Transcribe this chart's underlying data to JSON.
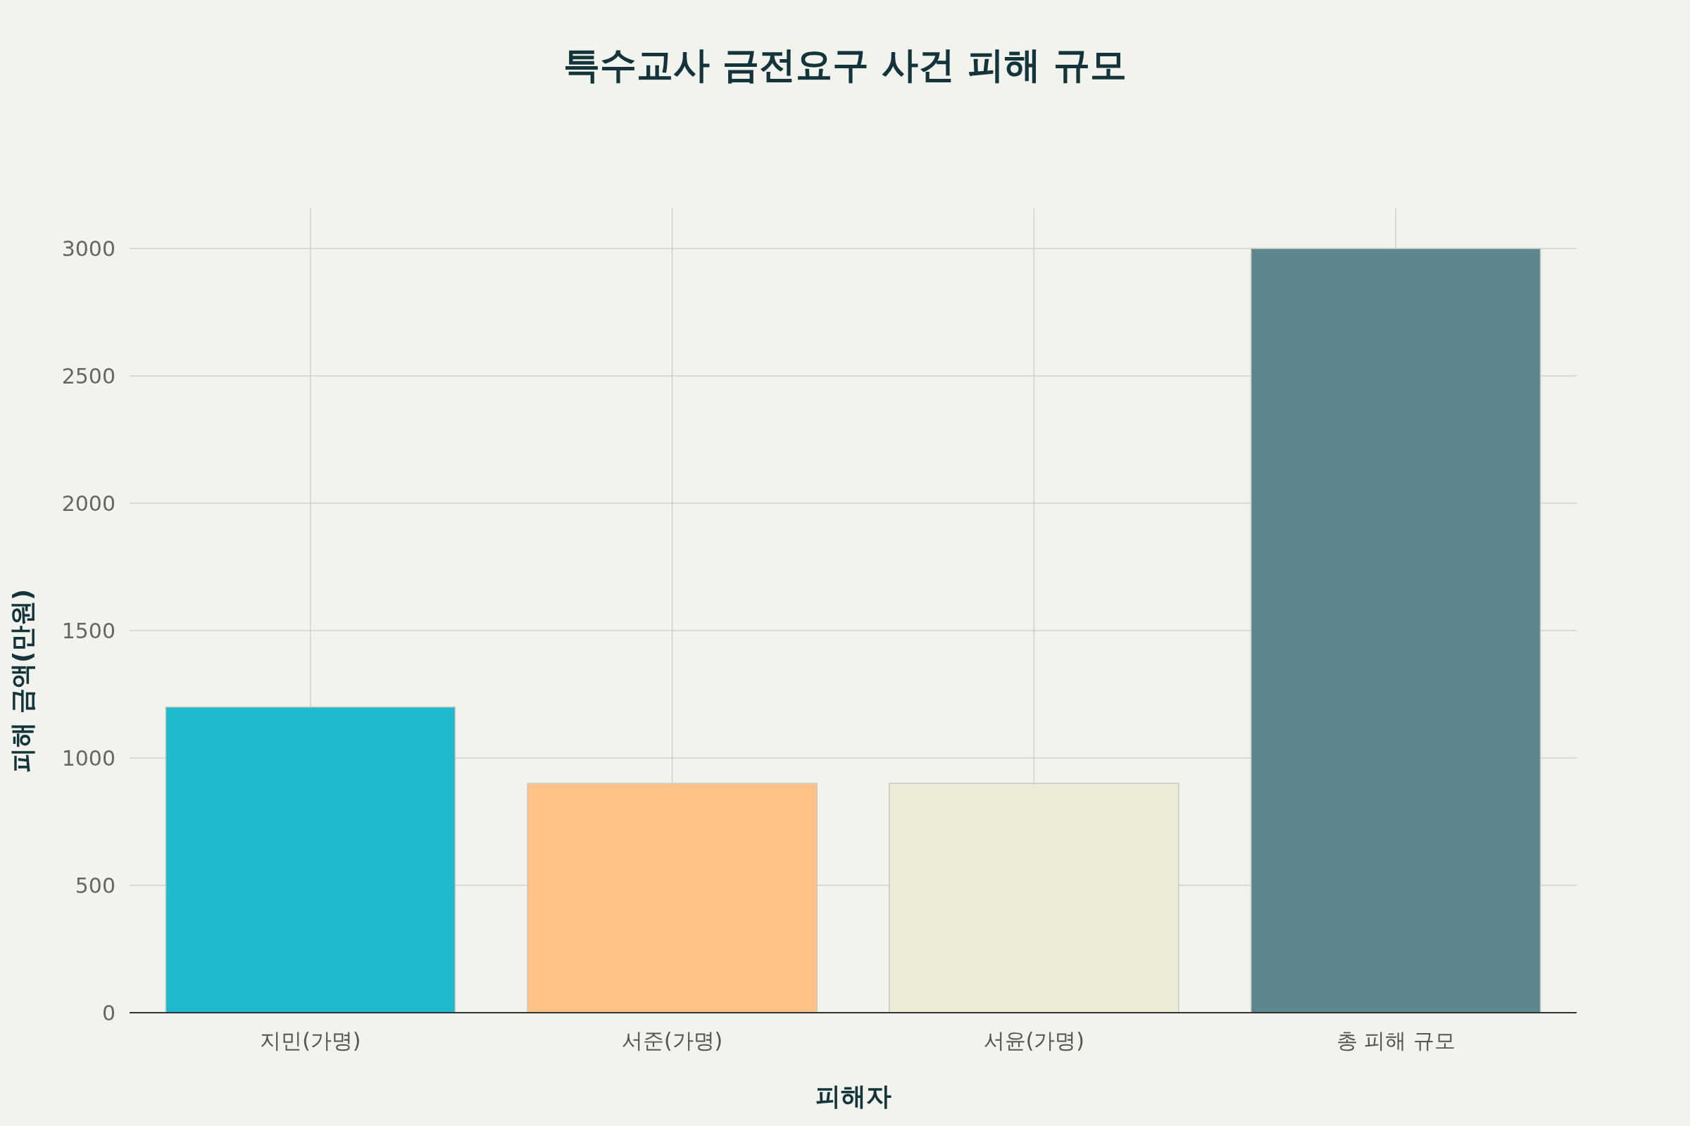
{
  "chart_data": {
    "type": "bar",
    "title": "특수교사 금전요구 사건 피해 규모",
    "xlabel": "피해자",
    "ylabel": "피해 금액(만원)",
    "categories": [
      "지민(가명)",
      "서준(가명)",
      "서윤(가명)",
      "총 피해 규모"
    ],
    "values": [
      1200,
      900,
      900,
      3000
    ],
    "colors": [
      "#1fb8cd",
      "#ffc185",
      "#ecebd5",
      "#5d878f"
    ],
    "ylim": [
      0,
      3158
    ],
    "yticks": [
      0,
      500,
      1000,
      1500,
      2000,
      2500,
      3000
    ],
    "grid": true
  }
}
